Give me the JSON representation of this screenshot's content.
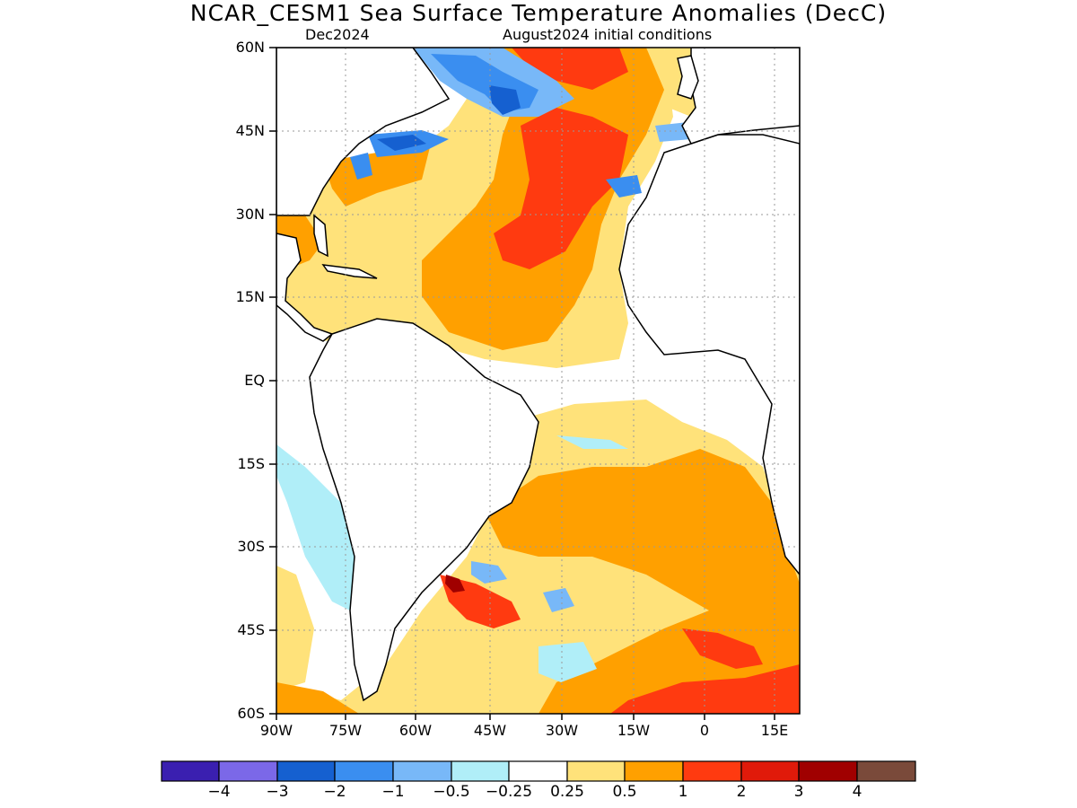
{
  "header": {
    "title": "NCAR_CESM1 Sea Surface Temperature Anomalies (DecC)",
    "target_month": "Dec2024",
    "initial_conditions": "August2024 initial conditions"
  },
  "map": {
    "lat_ticks": [
      "60N",
      "45N",
      "30N",
      "15N",
      "EQ",
      "15S",
      "30S",
      "45S",
      "60S"
    ],
    "lon_ticks": [
      "90W",
      "75W",
      "60W",
      "45W",
      "30W",
      "15W",
      "0",
      "15E"
    ],
    "land_color": "#ffffff",
    "ocean_neutral_color": "#ffffff",
    "coastline_color": "#000000",
    "grid": "dotted"
  },
  "colorbar": {
    "colors": [
      "#3a1fb0",
      "#7b68e8",
      "#1560d0",
      "#3a8ef0",
      "#78b8f8",
      "#b0eef8",
      "#ffffff",
      "#ffe27a",
      "#ffa000",
      "#ff3a10",
      "#e01a0a",
      "#a00000",
      "#7a4a3a"
    ],
    "labels": [
      "−4",
      "−3",
      "−2",
      "−1",
      "−0.5",
      "−0.25",
      "0.25",
      "0.5",
      "1",
      "2",
      "3",
      "4"
    ]
  }
}
